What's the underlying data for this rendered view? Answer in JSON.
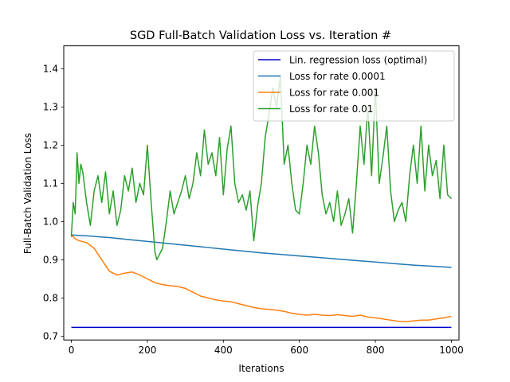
{
  "chart_data": {
    "type": "line",
    "title": "SGD Full-Batch Validation Loss vs. Iteration #",
    "xlabel": "Iterations",
    "ylabel": "Full-Batch Validation Loss",
    "xlim": [
      -20,
      1020
    ],
    "ylim": [
      0.69,
      1.46
    ],
    "xticks": [
      0,
      200,
      400,
      600,
      800,
      1000
    ],
    "yticks": [
      0.7,
      0.8,
      0.9,
      1.0,
      1.1,
      1.2,
      1.3,
      1.4
    ],
    "xtick_labels": [
      "0",
      "200",
      "400",
      "600",
      "800",
      "1000"
    ],
    "ytick_labels": [
      "0.7",
      "0.8",
      "0.9",
      "1.0",
      "1.1",
      "1.2",
      "1.3",
      "1.4"
    ],
    "grid": false,
    "legend_position": "top-right",
    "series": [
      {
        "name": "Lin. regression loss (optimal)",
        "color": "#0000cc",
        "x": [
          0,
          1000
        ],
        "y": [
          0.723,
          0.723
        ]
      },
      {
        "name": "Loss for rate 0.0001",
        "color": "#1f77b4",
        "x": [
          0,
          50,
          100,
          150,
          200,
          250,
          300,
          350,
          400,
          450,
          500,
          550,
          600,
          650,
          700,
          750,
          800,
          850,
          900,
          950,
          1000
        ],
        "y": [
          0.965,
          0.962,
          0.958,
          0.953,
          0.948,
          0.943,
          0.938,
          0.933,
          0.928,
          0.923,
          0.918,
          0.914,
          0.91,
          0.906,
          0.902,
          0.898,
          0.894,
          0.89,
          0.886,
          0.883,
          0.88
        ]
      },
      {
        "name": "Loss for rate 0.001",
        "color": "#ff7f0e",
        "x": [
          0,
          10,
          20,
          40,
          60,
          70,
          80,
          90,
          100,
          120,
          140,
          160,
          180,
          200,
          220,
          240,
          260,
          280,
          300,
          320,
          340,
          360,
          380,
          400,
          420,
          440,
          460,
          480,
          500,
          520,
          540,
          560,
          580,
          600,
          620,
          640,
          660,
          680,
          700,
          720,
          740,
          760,
          780,
          800,
          820,
          840,
          860,
          880,
          900,
          920,
          940,
          960,
          980,
          1000
        ],
        "y": [
          0.965,
          0.955,
          0.95,
          0.945,
          0.93,
          0.915,
          0.9,
          0.885,
          0.87,
          0.86,
          0.865,
          0.868,
          0.86,
          0.85,
          0.84,
          0.835,
          0.832,
          0.83,
          0.825,
          0.815,
          0.805,
          0.8,
          0.795,
          0.792,
          0.79,
          0.785,
          0.78,
          0.775,
          0.772,
          0.77,
          0.768,
          0.765,
          0.76,
          0.757,
          0.755,
          0.757,
          0.755,
          0.754,
          0.756,
          0.754,
          0.752,
          0.755,
          0.75,
          0.748,
          0.745,
          0.742,
          0.739,
          0.738,
          0.74,
          0.742,
          0.742,
          0.745,
          0.748,
          0.752
        ]
      },
      {
        "name": "Loss for rate 0.01",
        "color": "#2ca02c",
        "x": [
          0,
          5,
          10,
          15,
          20,
          25,
          30,
          40,
          50,
          60,
          70,
          80,
          90,
          100,
          110,
          120,
          130,
          140,
          150,
          160,
          170,
          180,
          190,
          200,
          210,
          220,
          225,
          230,
          240,
          250,
          260,
          270,
          280,
          290,
          300,
          310,
          320,
          330,
          340,
          350,
          360,
          370,
          380,
          390,
          400,
          410,
          420,
          430,
          440,
          450,
          460,
          470,
          480,
          490,
          500,
          510,
          520,
          530,
          540,
          550,
          560,
          570,
          580,
          590,
          600,
          610,
          620,
          630,
          640,
          650,
          660,
          670,
          680,
          690,
          700,
          710,
          720,
          730,
          740,
          750,
          760,
          770,
          780,
          790,
          800,
          810,
          820,
          830,
          840,
          850,
          860,
          870,
          880,
          890,
          900,
          910,
          920,
          930,
          940,
          950,
          960,
          970,
          980,
          990,
          1000
        ],
        "y": [
          0.96,
          1.05,
          1.02,
          1.18,
          1.1,
          1.15,
          1.13,
          1.05,
          0.99,
          1.08,
          1.12,
          1.05,
          1.13,
          1.02,
          1.08,
          0.99,
          1.03,
          1.12,
          1.08,
          1.14,
          1.05,
          1.1,
          1.07,
          1.2,
          1.05,
          0.92,
          0.9,
          0.91,
          0.93,
          1.0,
          1.08,
          1.02,
          1.05,
          1.08,
          1.12,
          1.06,
          1.1,
          1.18,
          1.12,
          1.24,
          1.15,
          1.18,
          1.12,
          1.22,
          1.07,
          1.19,
          1.25,
          1.1,
          1.05,
          1.07,
          1.03,
          1.08,
          0.95,
          1.04,
          1.1,
          1.22,
          1.28,
          1.35,
          1.3,
          1.38,
          1.15,
          1.2,
          1.1,
          1.03,
          1.02,
          1.1,
          1.2,
          1.15,
          1.25,
          1.18,
          1.07,
          1.02,
          1.05,
          1.0,
          1.08,
          0.99,
          1.02,
          1.06,
          0.97,
          1.1,
          1.25,
          1.15,
          1.3,
          1.12,
          1.35,
          1.1,
          1.17,
          1.25,
          1.08,
          1.0,
          1.03,
          1.05,
          1.0,
          1.12,
          1.2,
          1.1,
          1.25,
          1.08,
          1.2,
          1.12,
          1.16,
          1.06,
          1.2,
          1.07,
          1.06
        ]
      }
    ]
  }
}
